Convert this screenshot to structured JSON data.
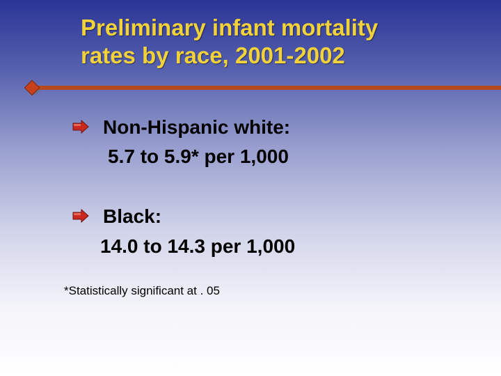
{
  "slide": {
    "title_line1": "Preliminary infant mortality",
    "title_line2": "rates by race, 2001-2002",
    "items": [
      {
        "label": "Non-Hispanic white:",
        "value": "5.7 to 5.9* per 1,000"
      },
      {
        "label": "Black:",
        "value": "14.0 to 14.3 per 1,000"
      }
    ],
    "footnote": "*Statistically significant at . 05"
  },
  "colors": {
    "title": "#f2d23a",
    "accent_rule": "#b64a1e",
    "bullet": "#c8281e",
    "background_top": "#2a3496",
    "background_bottom": "#ffffff"
  },
  "icons": {
    "bullet": "arrow-bullet-icon",
    "rule_end": "diamond-icon"
  }
}
